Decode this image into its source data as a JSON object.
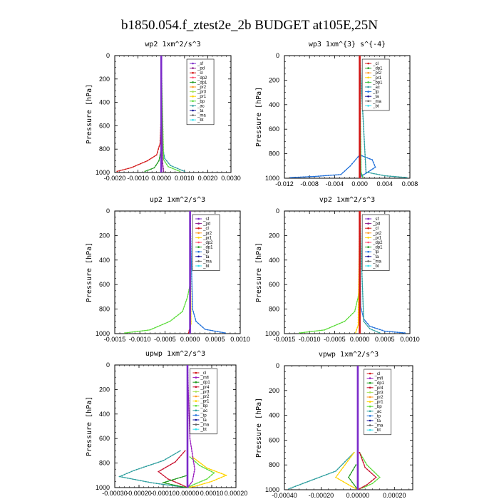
{
  "figure_title": "b1850.054.f_ztest2e_2b  BUDGET at105E,25N",
  "colors": {
    "sf": "#7b2ac9",
    "pd": "#8b1a8b",
    "cl": "#d21414",
    "dp2": "#ff4a6a",
    "dp1": "#1f9a1f",
    "pr2": "#ff9922",
    "pr1": "#ffd400",
    "pr3": "#a8e05a",
    "pr4": "#c8102e",
    "bp": "#5ddc3c",
    "bp1": "#3cbf3c",
    "ac": "#2f9f9f",
    "tp": "#1f6fd9",
    "ta": "#111199",
    "ma": "#666666",
    "bt": "#33e0ee",
    "mfl": "#9b1fc0"
  },
  "chart_data": [
    {
      "type": "line",
      "title": "wp2   1xm^2/s^3",
      "ylabel": "Pressure [hPa]",
      "xlim": [
        -0.002,
        0.003
      ],
      "ylim": [
        1000,
        0
      ],
      "xticks": [
        -0.002,
        -0.001,
        0,
        0.001,
        0.002,
        0.003
      ],
      "xticklabels": [
        "-0.0020",
        "-0.0010",
        "0.0000",
        "0.0010",
        "0.0020",
        "0.0030"
      ],
      "yticks": [
        0,
        200,
        400,
        600,
        800,
        1000
      ],
      "legend": [
        "_sf",
        "_pd",
        "_cl",
        "_dp2",
        "_dp1",
        "_pr2",
        "_pr3",
        "_pr1",
        "_bp",
        "_ac",
        "_ta",
        "_ma",
        "_bt"
      ],
      "series": [
        {
          "name": "_cl",
          "key": "cl",
          "x": [
            -0.0019,
            -0.0013,
            -0.0006,
            -0.0002,
            -5e-05,
            0,
            0
          ],
          "y": [
            990,
            960,
            900,
            850,
            750,
            500,
            0
          ]
        },
        {
          "name": "_dp1",
          "key": "dp1",
          "x": [
            -0.0007,
            -0.0003,
            -0.0001,
            0,
            0
          ],
          "y": [
            990,
            960,
            900,
            800,
            0
          ]
        },
        {
          "name": "_ac",
          "key": "ac",
          "x": [
            0.001,
            0.0004,
            0.00015,
            5e-05,
            0
          ],
          "y": [
            990,
            940,
            880,
            780,
            0
          ]
        },
        {
          "name": "_bp",
          "key": "bp",
          "x": [
            0.0008,
            0.0003,
            0.0001,
            0
          ],
          "y": [
            990,
            950,
            890,
            0
          ]
        },
        {
          "name": "_pd",
          "key": "pd",
          "x": [
            0.0001,
            5e-05,
            0
          ],
          "y": [
            990,
            900,
            0
          ]
        },
        {
          "name": "_sf",
          "key": "sf",
          "x": [
            0,
            0
          ],
          "y": [
            1000,
            0
          ]
        }
      ]
    },
    {
      "type": "line",
      "title": "wp3   1xm^{3} s^{-4}",
      "ylabel": "Pressure [hPa]",
      "xlim": [
        -0.012,
        0.008
      ],
      "ylim": [
        1000,
        0
      ],
      "xticks": [
        -0.012,
        -0.008,
        -0.004,
        0,
        0.004,
        0.008
      ],
      "xticklabels": [
        "-0.012",
        "-0.008",
        "-0.004",
        "0.000",
        "0.004",
        "0.008"
      ],
      "yticks": [
        0,
        200,
        400,
        600,
        800,
        1000
      ],
      "legend": [
        "_cl",
        "_dp1",
        "_pr2",
        "_pr1",
        "_bp1",
        "_ac",
        "_tp",
        "_ta",
        "_ma",
        "_bt"
      ],
      "series": [
        {
          "name": "_tp",
          "key": "tp",
          "x": [
            -0.011,
            -0.007,
            -0.003,
            -0.0015,
            0,
            0.002,
            0.0025,
            0.001,
            0.0002,
            0,
            0
          ],
          "y": [
            995,
            985,
            970,
            900,
            810,
            850,
            910,
            960,
            985,
            700,
            0
          ]
        },
        {
          "name": "_ac",
          "key": "ac",
          "x": [
            0.0075,
            0.004,
            0.001,
            0
          ],
          "y": [
            995,
            980,
            950,
            0
          ]
        },
        {
          "name": "_bp1",
          "key": "bp1",
          "x": [
            0.0005,
            0.0002,
            0
          ],
          "y": [
            990,
            950,
            0
          ]
        },
        {
          "name": "_cl",
          "key": "cl",
          "x": [
            0,
            0
          ],
          "y": [
            1000,
            0
          ]
        }
      ]
    },
    {
      "type": "line",
      "title": "up2   1xm^2/s^3",
      "ylabel": "Pressure [hPa]",
      "xlim": [
        -0.0015,
        0.001
      ],
      "ylim": [
        1000,
        0
      ],
      "xticks": [
        -0.0015,
        -0.001,
        -0.0005,
        0,
        0.0005,
        0.001
      ],
      "xticklabels": [
        "-0.0015",
        "-0.0010",
        "-0.0005",
        "0.0000",
        "0.0005",
        "0.0010"
      ],
      "yticks": [
        0,
        200,
        400,
        600,
        800,
        1000
      ],
      "legend": [
        "_sf",
        "_pd",
        "_cl",
        "_pr2",
        "_pr1",
        "_dp2",
        "_dp1",
        "_tp",
        "_ta",
        "_ma",
        "_bt"
      ],
      "series": [
        {
          "name": "_dp2",
          "key": "bp",
          "x": [
            -0.0013,
            -0.0008,
            -0.0004,
            -0.00015,
            -5e-05,
            0,
            0
          ],
          "y": [
            995,
            970,
            900,
            820,
            700,
            600,
            0
          ]
        },
        {
          "name": "_tp",
          "key": "tp",
          "x": [
            0.0007,
            0.0003,
            0.00012,
            5e-05,
            0
          ],
          "y": [
            995,
            965,
            900,
            800,
            0
          ]
        },
        {
          "name": "_pr1",
          "key": "pr1",
          "x": [
            -2e-05,
            2e-05,
            0
          ],
          "y": [
            990,
            920,
            0
          ]
        },
        {
          "name": "_cl",
          "key": "cl",
          "x": [
            -3e-05,
            0,
            0
          ],
          "y": [
            995,
            950,
            0
          ]
        },
        {
          "name": "_sf",
          "key": "sf",
          "x": [
            0,
            0
          ],
          "y": [
            1000,
            0
          ]
        }
      ]
    },
    {
      "type": "line",
      "title": "vp2   1xm^2/s^3",
      "ylabel": "Pressure [hPa]",
      "xlim": [
        -0.0015,
        0.001
      ],
      "ylim": [
        1000,
        0
      ],
      "xticks": [
        -0.0015,
        -0.001,
        -0.0005,
        0,
        0.0005,
        0.001
      ],
      "xticklabels": [
        "-0.0015",
        "-0.0010",
        "-0.0005",
        "0.0000",
        "0.0005",
        "0.0010"
      ],
      "yticks": [
        0,
        200,
        400,
        600,
        800,
        1000
      ],
      "legend": [
        "_sf",
        "_pd",
        "_cl",
        "_pr2",
        "_pr1",
        "_dp2",
        "_dp1",
        "_tp",
        "_ta",
        "_ma",
        "_bt"
      ],
      "series": [
        {
          "name": "_dp2",
          "key": "bp",
          "x": [
            -0.0012,
            -0.0007,
            -0.0003,
            -0.0001,
            -3e-05,
            0,
            0
          ],
          "y": [
            995,
            970,
            900,
            820,
            700,
            600,
            0
          ]
        },
        {
          "name": "_tp",
          "key": "tp",
          "x": [
            0.0009,
            0.0005,
            0.0002,
            8e-05,
            2e-05,
            0
          ],
          "y": [
            995,
            980,
            940,
            880,
            780,
            0
          ]
        },
        {
          "name": "_ac",
          "key": "ac",
          "x": [
            0.0004,
            0.0002,
            8e-05,
            0
          ],
          "y": [
            995,
            960,
            900,
            0
          ]
        },
        {
          "name": "_pr1",
          "key": "pr1",
          "x": [
            -8e-05,
            -3e-05,
            0
          ],
          "y": [
            990,
            930,
            0
          ]
        },
        {
          "name": "_cl",
          "key": "cl",
          "x": [
            0,
            0
          ],
          "y": [
            1000,
            0
          ]
        }
      ]
    },
    {
      "type": "line",
      "title": "upwp   1xm^2/s^3",
      "ylabel": "Pressure [hPa]",
      "xlim": [
        -0.0003,
        0.0002
      ],
      "ylim": [
        1000,
        0
      ],
      "xticks": [
        -0.0003,
        -0.0002,
        -0.0001,
        0,
        0.0001,
        0.0002
      ],
      "xticklabels": [
        "-0.00030",
        "-0.00020",
        "-0.00010",
        "0.00000",
        "0.00010",
        "0.00020"
      ],
      "yticks": [
        0,
        200,
        400,
        600,
        800,
        1000
      ],
      "legend": [
        "_cl",
        "_mfl",
        "_dp1",
        "_pr4",
        "_pr3",
        "_pr2",
        "_pr1",
        "_bp",
        "_ac",
        "_tp",
        "_ta",
        "_ma",
        "_bt"
      ],
      "series": [
        {
          "name": "_ac",
          "key": "ac",
          "x": [
            -3e-05,
            -0.0001,
            -0.00022,
            -0.00028,
            -0.00015,
            -4e-05,
            0
          ],
          "y": [
            700,
            780,
            860,
            910,
            960,
            990,
            1000
          ]
        },
        {
          "name": "_pr1",
          "key": "pr1",
          "x": [
            2e-05,
            8e-05,
            0.00016,
            0.0001,
            3e-05,
            0
          ],
          "y": [
            750,
            840,
            900,
            950,
            990,
            1000
          ]
        },
        {
          "name": "_bp",
          "key": "bp",
          "x": [
            1e-05,
            5e-05,
            0.00011,
            8e-05,
            2e-05,
            0
          ],
          "y": [
            750,
            820,
            880,
            930,
            980,
            1000
          ]
        },
        {
          "name": "_pr4",
          "key": "pr4",
          "x": [
            -1e-05,
            -5e-05,
            -0.00012,
            -8e-05,
            -2e-05,
            0
          ],
          "y": [
            700,
            790,
            870,
            930,
            980,
            1000
          ]
        },
        {
          "name": "_dp1",
          "key": "dp1",
          "x": [
            0,
            -0.0001,
            -3e-05,
            0
          ],
          "y": [
            900,
            960,
            990,
            1000
          ]
        },
        {
          "name": "_mfl",
          "key": "mfl",
          "x": [
            0,
            1e-05,
            3e-05,
            2e-05,
            0
          ],
          "y": [
            0,
            600,
            850,
            950,
            1000
          ]
        },
        {
          "name": "_cl",
          "key": "sf",
          "x": [
            0,
            0
          ],
          "y": [
            0,
            1000
          ]
        }
      ]
    },
    {
      "type": "line",
      "title": "vpwp   1xm^2/s^3",
      "ylabel": "Pressure [hPa]",
      "xlim": [
        -0.0004,
        0.0003
      ],
      "ylim": [
        1000,
        0
      ],
      "xticks": [
        -0.0004,
        -0.0002,
        0,
        0.0002
      ],
      "xticklabels": [
        "-0.00040",
        "-0.00020",
        "0.00000",
        "0.00020"
      ],
      "yticks": [
        0,
        200,
        400,
        600,
        800,
        1000
      ],
      "legend": [
        "_cl",
        "_mfl",
        "_dp1",
        "_pr4",
        "_pr3",
        "_pr2",
        "_pr1",
        "_bp",
        "_ac",
        "_tp",
        "_ta",
        "_ma",
        "_bt"
      ],
      "series": [
        {
          "name": "_ac",
          "key": "ac",
          "x": [
            -2e-05,
            -0.00012,
            -0.0003,
            -0.00038
          ],
          "y": [
            700,
            850,
            950,
            995
          ]
        },
        {
          "name": "_pr1",
          "key": "pr1",
          "x": [
            -2e-05,
            -8e-05,
            -0.00012,
            -5e-05,
            0
          ],
          "y": [
            700,
            820,
            900,
            960,
            1000
          ]
        },
        {
          "name": "_bp",
          "key": "bp",
          "x": [
            1e-05,
            5e-05,
            0.00012,
            8e-05,
            2e-05
          ],
          "y": [
            700,
            800,
            900,
            950,
            990
          ]
        },
        {
          "name": "_pr4",
          "key": "pr4",
          "x": [
            1e-05,
            4e-05,
            0.0001,
            5e-05,
            0
          ],
          "y": [
            700,
            820,
            900,
            960,
            1000
          ]
        },
        {
          "name": "_dp1",
          "key": "dp1",
          "x": [
            -1e-05,
            -5e-05,
            -2e-05,
            0
          ],
          "y": [
            800,
            900,
            960,
            1000
          ]
        },
        {
          "name": "_cl",
          "key": "sf",
          "x": [
            0,
            0
          ],
          "y": [
            0,
            1000
          ]
        }
      ]
    }
  ]
}
